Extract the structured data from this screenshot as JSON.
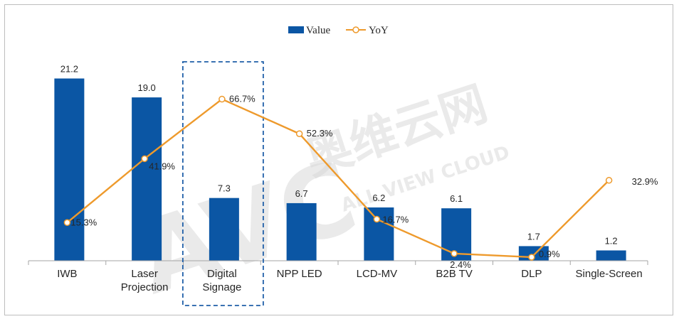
{
  "chart_data": {
    "type": "bar",
    "categories": [
      "IWB",
      "Laser Projection",
      "Digital Signage",
      "NPP LED",
      "LCD-MV",
      "B2B TV",
      "DLP",
      "Single-Screen"
    ],
    "category_lines": [
      [
        "IWB"
      ],
      [
        "Laser",
        "Projection"
      ],
      [
        "Digital",
        "Signage"
      ],
      [
        "NPP LED"
      ],
      [
        "LCD-MV"
      ],
      [
        "B2B TV"
      ],
      [
        "DLP"
      ],
      [
        "Single-Screen"
      ]
    ],
    "series": [
      {
        "name": "Value",
        "type": "bar",
        "color": "#0b56a4",
        "values": [
          21.2,
          19.0,
          7.3,
          6.7,
          6.2,
          6.1,
          1.7,
          1.2
        ],
        "labels": [
          "21.2",
          "19.0",
          "7.3",
          "6.7",
          "6.2",
          "6.1",
          "1.7",
          "1.2"
        ]
      },
      {
        "name": "YoY",
        "type": "line",
        "color": "#ee9a2c",
        "values": [
          15.3,
          41.9,
          66.7,
          52.3,
          16.7,
          2.4,
          0.9,
          32.9
        ],
        "labels": [
          "15.3%",
          "41.9%",
          "66.7%",
          "52.3%",
          "16.7%",
          "2.4%",
          "0.9%",
          "32.9%"
        ]
      }
    ],
    "highlight_category": "Digital Signage",
    "legend_position": "top-center",
    "grid": false
  },
  "watermark": {
    "brand": "AVC",
    "cn": "奥维云网",
    "en": "ALL VIEW CLOUD"
  }
}
